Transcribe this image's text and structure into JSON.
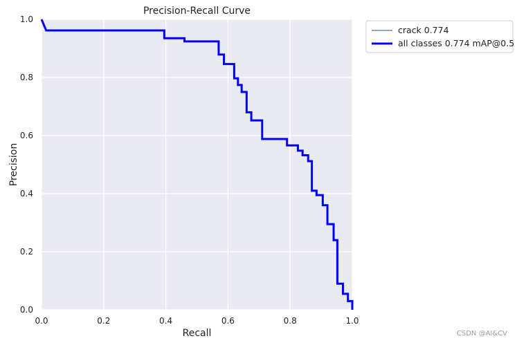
{
  "chart_data": {
    "type": "line",
    "title": "Precision-Recall Curve",
    "xlabel": "Recall",
    "ylabel": "Precision",
    "xlim": [
      0,
      1
    ],
    "ylim": [
      0,
      1
    ],
    "xticks": [
      "0.0",
      "0.2",
      "0.4",
      "0.6",
      "0.8",
      "1.0"
    ],
    "yticks": [
      "0.0",
      "0.2",
      "0.4",
      "0.6",
      "0.8",
      "1.0"
    ],
    "grid": true,
    "legend_position": "outside top-right",
    "colors": {
      "background": "#eaeaf2",
      "grid": "#ffffff",
      "crack": "#4c72b0",
      "all": "#0000ff"
    },
    "series": [
      {
        "name": "crack 0.774",
        "x": [
          0.0,
          0.015,
          0.015,
          0.395,
          0.395,
          0.46,
          0.46,
          0.57,
          0.57,
          0.587,
          0.587,
          0.62,
          0.62,
          0.632,
          0.632,
          0.644,
          0.644,
          0.66,
          0.66,
          0.675,
          0.675,
          0.71,
          0.71,
          0.79,
          0.79,
          0.825,
          0.825,
          0.84,
          0.84,
          0.858,
          0.858,
          0.87,
          0.87,
          0.885,
          0.885,
          0.905,
          0.905,
          0.92,
          0.92,
          0.94,
          0.94,
          0.952,
          0.952,
          0.97,
          0.97,
          0.986,
          0.986,
          1.0,
          1.0
        ],
        "y": [
          1.0,
          0.962,
          0.962,
          0.962,
          0.935,
          0.935,
          0.924,
          0.924,
          0.879,
          0.879,
          0.846,
          0.846,
          0.797,
          0.797,
          0.774,
          0.774,
          0.75,
          0.75,
          0.68,
          0.68,
          0.652,
          0.652,
          0.588,
          0.588,
          0.566,
          0.566,
          0.548,
          0.548,
          0.532,
          0.532,
          0.512,
          0.512,
          0.41,
          0.41,
          0.395,
          0.395,
          0.36,
          0.36,
          0.295,
          0.295,
          0.24,
          0.24,
          0.09,
          0.09,
          0.055,
          0.055,
          0.03,
          0.03,
          0.0
        ]
      },
      {
        "name": "all classes 0.774 mAP@0.5",
        "x": [
          0.0,
          0.015,
          0.015,
          0.395,
          0.395,
          0.46,
          0.46,
          0.57,
          0.57,
          0.587,
          0.587,
          0.62,
          0.62,
          0.632,
          0.632,
          0.644,
          0.644,
          0.66,
          0.66,
          0.675,
          0.675,
          0.71,
          0.71,
          0.79,
          0.79,
          0.825,
          0.825,
          0.84,
          0.84,
          0.858,
          0.858,
          0.87,
          0.87,
          0.885,
          0.885,
          0.905,
          0.905,
          0.92,
          0.92,
          0.94,
          0.94,
          0.952,
          0.952,
          0.97,
          0.97,
          0.986,
          0.986,
          1.0,
          1.0
        ],
        "y": [
          1.0,
          0.962,
          0.962,
          0.962,
          0.935,
          0.935,
          0.924,
          0.924,
          0.879,
          0.879,
          0.846,
          0.846,
          0.797,
          0.797,
          0.774,
          0.774,
          0.75,
          0.75,
          0.68,
          0.68,
          0.652,
          0.652,
          0.588,
          0.588,
          0.566,
          0.566,
          0.548,
          0.548,
          0.532,
          0.532,
          0.512,
          0.512,
          0.41,
          0.41,
          0.395,
          0.395,
          0.36,
          0.36,
          0.295,
          0.295,
          0.24,
          0.24,
          0.09,
          0.09,
          0.055,
          0.055,
          0.03,
          0.03,
          0.0
        ]
      }
    ]
  },
  "watermark": "CSDN @AI&CV"
}
